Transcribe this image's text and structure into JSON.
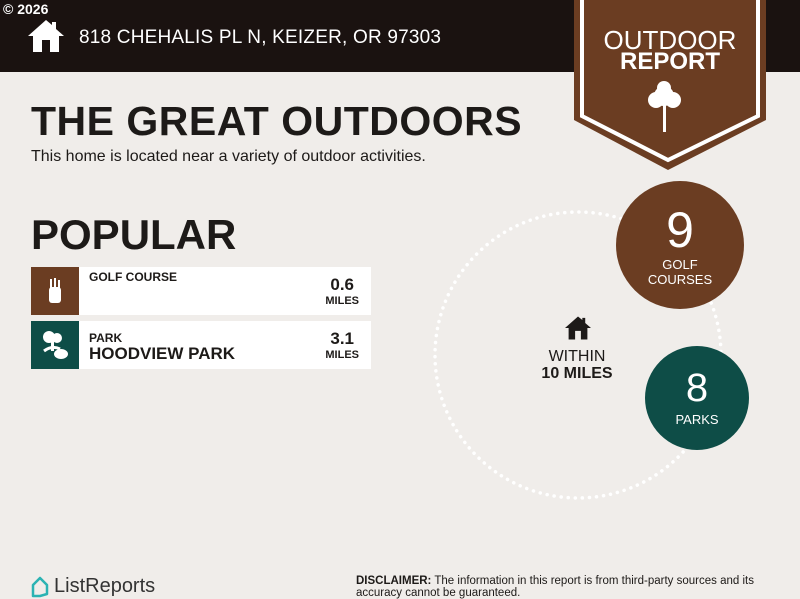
{
  "header": {
    "copyright": "© 2026",
    "address": "818 CHEHALIS PL N, KEIZER, OR 97303"
  },
  "badge": {
    "line1": "OUTDOOR",
    "line2": "REPORT",
    "icon": "tree-icon"
  },
  "main": {
    "title": "THE GREAT OUTDOORS",
    "subtitle": "This home is located near a variety of outdoor activities.",
    "popular_heading": "POPULAR",
    "items": [
      {
        "category": "GOLF COURSE",
        "name": "",
        "distance": "0.6",
        "unit": "MILES",
        "icon": "golf-bag-icon",
        "color": "#6b3d22"
      },
      {
        "category": "PARK",
        "name": "HOODVIEW PARK",
        "distance": "3.1",
        "unit": "MILES",
        "icon": "park-trees-icon",
        "color": "#0e4d47"
      }
    ]
  },
  "summary": {
    "within_line1": "WITHIN",
    "within_line2": "10 MILES",
    "golf": {
      "count": "9",
      "label1": "GOLF",
      "label2": "COURSES",
      "color": "#6b3d22"
    },
    "parks": {
      "count": "8",
      "label": "PARKS",
      "color": "#0e4d47"
    }
  },
  "footer": {
    "brand": "ListReports",
    "disclaimer_label": "DISCLAIMER:",
    "disclaimer": " The information in this report is from third-party sources and its accuracy cannot be guaranteed."
  }
}
